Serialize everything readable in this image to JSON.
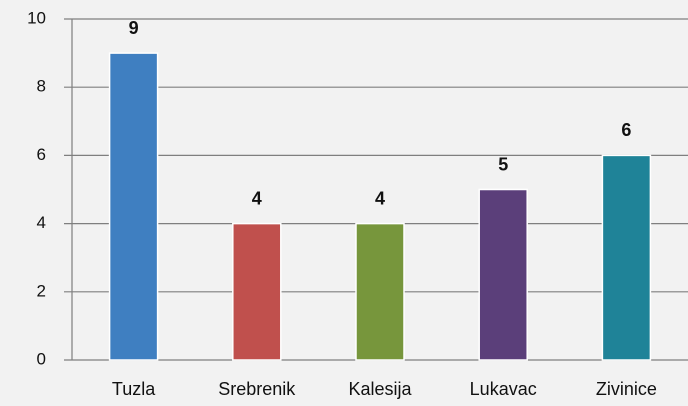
{
  "chart_data": {
    "type": "bar",
    "categories": [
      "Tuzla",
      "Srebrenik",
      "Kalesija",
      "Lukavac",
      "Zivinice"
    ],
    "values": [
      9,
      4,
      4,
      5,
      6
    ],
    "colors": [
      "#3f7fc1",
      "#c0504d",
      "#77963c",
      "#5b3f7a",
      "#1f8398"
    ],
    "ylim": [
      0,
      10
    ],
    "yticks": [
      0,
      2,
      4,
      6,
      8,
      10
    ],
    "grid": true
  }
}
